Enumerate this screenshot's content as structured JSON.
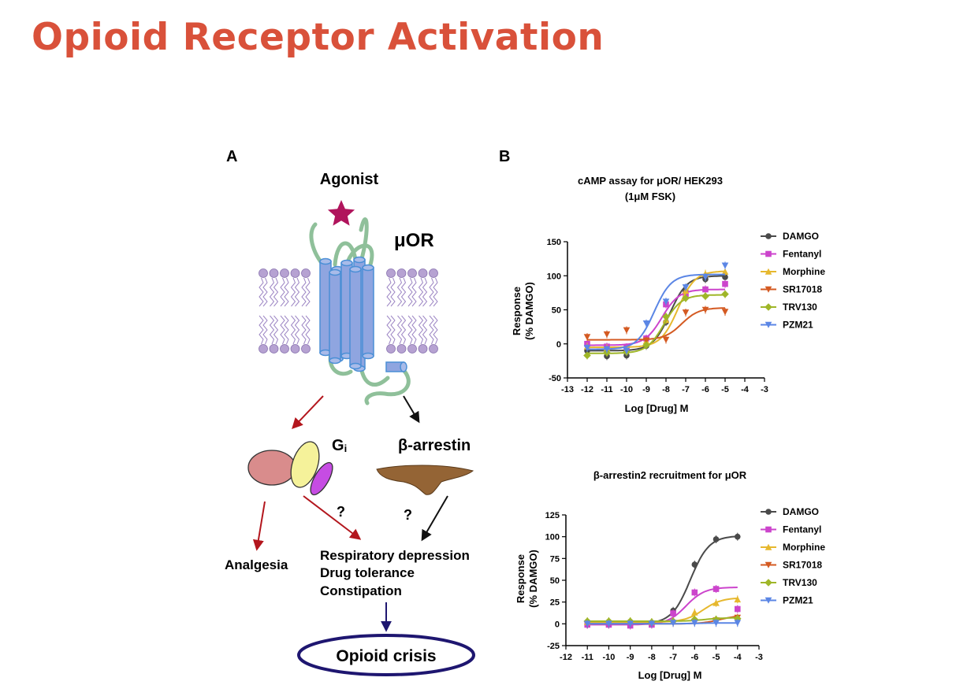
{
  "slide_title": "Opioid Receptor Activation",
  "colors": {
    "title": "#d9513a",
    "receptor": "#8fa5e0",
    "membrane": "#b6a2d2",
    "loop": "#8fc09a",
    "agonist": "#b0145c",
    "red_arrow": "#b3161d",
    "arrestin": "#946435",
    "crisis": "#1e1670"
  },
  "panel_a": {
    "letter": "A",
    "agonist": "Agonist",
    "receptor": "μOR",
    "gi_main": "G",
    "gi_sub": "i",
    "arrestin": "β-arrestin",
    "question_left": "?",
    "question_right": "?",
    "analgesia": "Analgesia",
    "effects": [
      "Respiratory depression",
      "Drug tolerance",
      "Constipation"
    ],
    "crisis": "Opioid crisis"
  },
  "panel_b": {
    "letter": "B",
    "legend_labels": [
      "DAMGO",
      "Fentanyl",
      "Morphine",
      "SR17018",
      "TRV130",
      "PZM21"
    ]
  },
  "chart_data": [
    {
      "type": "line",
      "title": "cAMP assay for μOR/ HEK293",
      "subtitle": "(1μM FSK)",
      "xlabel": "Log [Drug] M",
      "ylabel_line1": "Response",
      "ylabel_line2": "(% DAMGO)",
      "xlim": [
        -13,
        -3
      ],
      "ylim": [
        -50,
        150
      ],
      "x_ticks": [
        -13,
        -12,
        -11,
        -10,
        -9,
        -8,
        -7,
        -6,
        -5,
        -4,
        -3
      ],
      "y_ticks": [
        -50,
        0,
        50,
        100,
        150
      ],
      "x": [
        -12,
        -11,
        -10,
        -9,
        -8,
        -7,
        -6,
        -5
      ],
      "legend_position": "right",
      "series": [
        {
          "name": "DAMGO",
          "color": "#4a4a4a",
          "marker": "circle",
          "values": [
            -10,
            -18,
            -17,
            -3,
            32,
            77,
            95,
            98
          ],
          "fit": {
            "bottom": -10,
            "top": 100,
            "ec50": -7.8
          }
        },
        {
          "name": "Fentanyl",
          "color": "#cc44cc",
          "marker": "square",
          "values": [
            0,
            -4,
            -5,
            8,
            58,
            72,
            80,
            88
          ],
          "fit": {
            "bottom": -2,
            "top": 80,
            "ec50": -8.2
          }
        },
        {
          "name": "Morphine",
          "color": "#e6b82e",
          "marker": "triangle",
          "values": [
            -4,
            -6,
            -8,
            4,
            35,
            78,
            103,
            106
          ],
          "fit": {
            "bottom": -5,
            "top": 107,
            "ec50": -7.4
          }
        },
        {
          "name": "SR17018",
          "color": "#d45a22",
          "marker": "triangle-down",
          "values": [
            10,
            14,
            20,
            5,
            6,
            46,
            50,
            47
          ],
          "fit": {
            "bottom": 6,
            "top": 53,
            "ec50": -7.2
          }
        },
        {
          "name": "TRV130",
          "color": "#9fb628",
          "marker": "diamond",
          "values": [
            -17,
            -13,
            -12,
            -2,
            40,
            67,
            70,
            73
          ],
          "fit": {
            "bottom": -14,
            "top": 72,
            "ec50": -8.1
          }
        },
        {
          "name": "PZM21",
          "color": "#5b86e5",
          "marker": "triangle-down",
          "values": [
            -6,
            -8,
            -10,
            30,
            62,
            83,
            98,
            115
          ],
          "fit": {
            "bottom": -8,
            "top": 102,
            "ec50": -8.6
          }
        }
      ]
    },
    {
      "type": "line",
      "title": "β-arrestin2  recruitment for μOR",
      "xlabel": "Log [Drug] M",
      "ylabel_line1": "Response",
      "ylabel_line2": "(% DAMGO)",
      "xlim": [
        -12,
        -3
      ],
      "ylim": [
        -25,
        125
      ],
      "x_ticks": [
        -12,
        -11,
        -10,
        -9,
        -8,
        -7,
        -6,
        -5,
        -4,
        -3
      ],
      "y_ticks": [
        -25,
        0,
        25,
        50,
        75,
        100,
        125
      ],
      "x": [
        -11,
        -10,
        -9,
        -8,
        -7,
        -6,
        -5,
        -4
      ],
      "legend_position": "right",
      "series": [
        {
          "name": "DAMGO",
          "color": "#4a4a4a",
          "marker": "circle",
          "values": [
            -1,
            -1,
            0,
            1,
            15,
            68,
            97,
            100
          ],
          "fit": {
            "bottom": 0,
            "top": 101,
            "ec50": -6.2
          }
        },
        {
          "name": "Fentanyl",
          "color": "#cc44cc",
          "marker": "square",
          "values": [
            -1,
            -1,
            -2,
            -1,
            12,
            36,
            40,
            17
          ],
          "fit": {
            "bottom": -1,
            "top": 42,
            "ec50": -6.4
          }
        },
        {
          "name": "Morphine",
          "color": "#e6b82e",
          "marker": "triangle",
          "values": [
            2,
            3,
            3,
            2,
            3,
            13,
            24,
            28
          ],
          "fit": {
            "bottom": 2,
            "top": 30,
            "ec50": -5.6
          }
        },
        {
          "name": "SR17018",
          "color": "#d45a22",
          "marker": "triangle-down",
          "values": [
            0,
            0,
            0,
            0,
            1,
            2,
            4,
            7
          ],
          "fit": {
            "bottom": 0,
            "top": 10,
            "ec50": -4.8
          }
        },
        {
          "name": "TRV130",
          "color": "#9fb628",
          "marker": "diamond",
          "values": [
            3,
            3,
            3,
            2,
            3,
            5,
            5,
            6
          ],
          "fit": {
            "bottom": 3,
            "top": 7,
            "ec50": -5.5
          }
        },
        {
          "name": "PZM21",
          "color": "#5b86e5",
          "marker": "triangle-down",
          "values": [
            0,
            0,
            0,
            0,
            1,
            1,
            1,
            1
          ],
          "fit": {
            "bottom": 0,
            "top": 1,
            "ec50": -6.0
          }
        }
      ]
    }
  ]
}
